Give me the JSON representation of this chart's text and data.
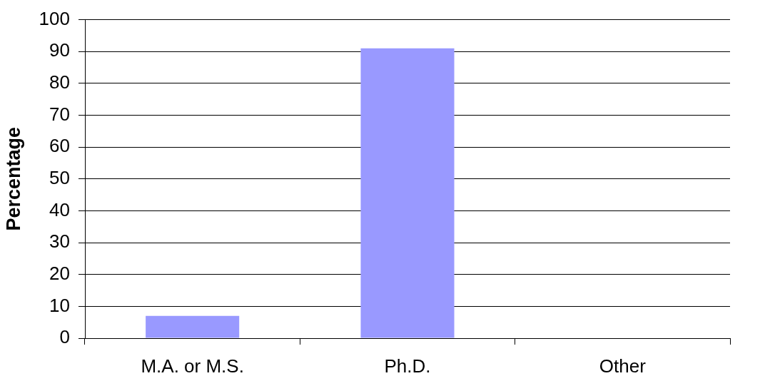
{
  "chart_data": {
    "type": "bar",
    "ylabel": "Percentage",
    "categories": [
      "M.A. or M.S.",
      "Ph.D.",
      "Other"
    ],
    "values": [
      7,
      91,
      0
    ],
    "color": "#9999ff",
    "ylim": [
      0,
      100
    ],
    "yticks": [
      0,
      10,
      20,
      30,
      40,
      50,
      60,
      70,
      80,
      90,
      100
    ],
    "grid": "y"
  }
}
